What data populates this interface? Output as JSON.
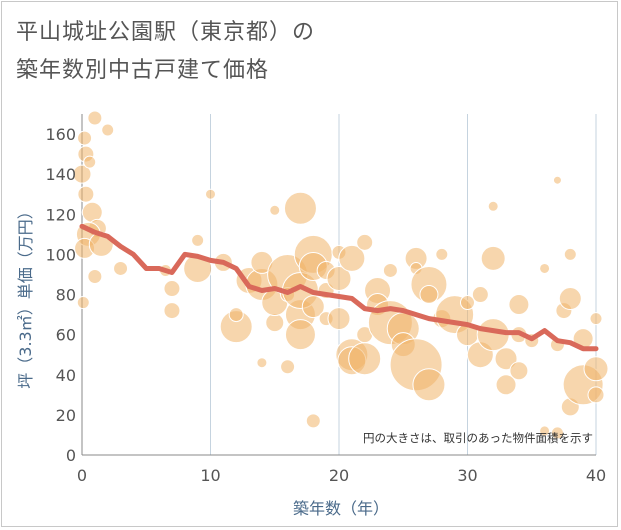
{
  "title_line1": "平山城址公園駅（東京都）の",
  "title_line2": "築年数別中古戸建て価格",
  "chart_data": {
    "type": "scatter",
    "xlabel": "築年数（年）",
    "ylabel": "坪（3.3㎡）単価（万円）",
    "xlim": [
      0,
      40
    ],
    "ylim": [
      0,
      170
    ],
    "xticks": [
      "0",
      "10",
      "20",
      "30",
      "40"
    ],
    "yticks": [
      "0",
      "20",
      "40",
      "60",
      "80",
      "100",
      "120",
      "140",
      "160"
    ],
    "xtick_values": [
      0,
      10,
      20,
      30,
      40
    ],
    "ytick_values": [
      0,
      20,
      40,
      60,
      80,
      100,
      120,
      140,
      160
    ],
    "grid": true,
    "annotation": "円の大きさは、取引のあった物件面積を示す",
    "bubble_color": "#f0b56a",
    "line_color": "#d9695a",
    "bubbles": [
      {
        "x": 0.2,
        "y": 158,
        "s": 7
      },
      {
        "x": 0.3,
        "y": 150,
        "s": 8
      },
      {
        "x": 0,
        "y": 140,
        "s": 9
      },
      {
        "x": 0.6,
        "y": 146,
        "s": 6
      },
      {
        "x": 0.3,
        "y": 130,
        "s": 8
      },
      {
        "x": 0.8,
        "y": 121,
        "s": 10
      },
      {
        "x": 1.2,
        "y": 113,
        "s": 9
      },
      {
        "x": 0.5,
        "y": 110,
        "s": 12
      },
      {
        "x": 0.2,
        "y": 103,
        "s": 10
      },
      {
        "x": 1.5,
        "y": 105,
        "s": 12
      },
      {
        "x": 1,
        "y": 89,
        "s": 7
      },
      {
        "x": 0.1,
        "y": 76,
        "s": 6
      },
      {
        "x": 1,
        "y": 168,
        "s": 7
      },
      {
        "x": 2,
        "y": 162,
        "s": 6
      },
      {
        "x": 3,
        "y": 93,
        "s": 7
      },
      {
        "x": 6.5,
        "y": 92,
        "s": 6
      },
      {
        "x": 7,
        "y": 83,
        "s": 8
      },
      {
        "x": 7,
        "y": 72,
        "s": 8
      },
      {
        "x": 9,
        "y": 93,
        "s": 14
      },
      {
        "x": 9,
        "y": 107,
        "s": 6
      },
      {
        "x": 10,
        "y": 130,
        "s": 5
      },
      {
        "x": 11,
        "y": 96,
        "s": 9
      },
      {
        "x": 12,
        "y": 64,
        "s": 16
      },
      {
        "x": 12,
        "y": 70,
        "s": 7
      },
      {
        "x": 13,
        "y": 87,
        "s": 13
      },
      {
        "x": 14,
        "y": 85,
        "s": 16
      },
      {
        "x": 14,
        "y": 96,
        "s": 11
      },
      {
        "x": 14,
        "y": 46,
        "s": 5
      },
      {
        "x": 15,
        "y": 66,
        "s": 9
      },
      {
        "x": 15,
        "y": 76,
        "s": 13
      },
      {
        "x": 15,
        "y": 122,
        "s": 5
      },
      {
        "x": 16,
        "y": 90,
        "s": 20
      },
      {
        "x": 16,
        "y": 80,
        "s": 7
      },
      {
        "x": 16,
        "y": 44,
        "s": 7
      },
      {
        "x": 17,
        "y": 70,
        "s": 15
      },
      {
        "x": 17,
        "y": 60,
        "s": 15
      },
      {
        "x": 17,
        "y": 82,
        "s": 18
      },
      {
        "x": 17,
        "y": 123,
        "s": 16
      },
      {
        "x": 18,
        "y": 100,
        "s": 19
      },
      {
        "x": 18,
        "y": 94,
        "s": 14
      },
      {
        "x": 18,
        "y": 74,
        "s": 11
      },
      {
        "x": 18,
        "y": 17,
        "s": 7
      },
      {
        "x": 19,
        "y": 92,
        "s": 9
      },
      {
        "x": 19,
        "y": 82,
        "s": 8
      },
      {
        "x": 19,
        "y": 68,
        "s": 7
      },
      {
        "x": 20,
        "y": 88,
        "s": 12
      },
      {
        "x": 20,
        "y": 68,
        "s": 11
      },
      {
        "x": 20,
        "y": 101,
        "s": 7
      },
      {
        "x": 21,
        "y": 98,
        "s": 13
      },
      {
        "x": 21,
        "y": 50,
        "s": 16
      },
      {
        "x": 21,
        "y": 47,
        "s": 14
      },
      {
        "x": 22,
        "y": 106,
        "s": 8
      },
      {
        "x": 22,
        "y": 60,
        "s": 8
      },
      {
        "x": 22,
        "y": 48,
        "s": 16
      },
      {
        "x": 23,
        "y": 82,
        "s": 13
      },
      {
        "x": 23,
        "y": 75,
        "s": 11
      },
      {
        "x": 24,
        "y": 92,
        "s": 7
      },
      {
        "x": 24,
        "y": 66,
        "s": 22
      },
      {
        "x": 25,
        "y": 63,
        "s": 16
      },
      {
        "x": 25,
        "y": 55,
        "s": 12
      },
      {
        "x": 26,
        "y": 98,
        "s": 11
      },
      {
        "x": 26,
        "y": 93,
        "s": 6
      },
      {
        "x": 26,
        "y": 45,
        "s": 26
      },
      {
        "x": 27,
        "y": 85,
        "s": 18
      },
      {
        "x": 27,
        "y": 80,
        "s": 9
      },
      {
        "x": 27,
        "y": 35,
        "s": 16
      },
      {
        "x": 28,
        "y": 100,
        "s": 6
      },
      {
        "x": 28,
        "y": 68,
        "s": 9
      },
      {
        "x": 29,
        "y": 70,
        "s": 19
      },
      {
        "x": 30,
        "y": 76,
        "s": 7
      },
      {
        "x": 30,
        "y": 60,
        "s": 11
      },
      {
        "x": 31,
        "y": 80,
        "s": 8
      },
      {
        "x": 31,
        "y": 50,
        "s": 13
      },
      {
        "x": 32,
        "y": 98,
        "s": 12
      },
      {
        "x": 32,
        "y": 124,
        "s": 5
      },
      {
        "x": 32,
        "y": 60,
        "s": 16
      },
      {
        "x": 33,
        "y": 48,
        "s": 11
      },
      {
        "x": 33,
        "y": 35,
        "s": 10
      },
      {
        "x": 34,
        "y": 75,
        "s": 10
      },
      {
        "x": 34,
        "y": 60,
        "s": 8
      },
      {
        "x": 34,
        "y": 42,
        "s": 9
      },
      {
        "x": 35,
        "y": 57,
        "s": 7
      },
      {
        "x": 36,
        "y": 93,
        "s": 5
      },
      {
        "x": 36,
        "y": 12,
        "s": 5
      },
      {
        "x": 37,
        "y": 137,
        "s": 4
      },
      {
        "x": 37,
        "y": 55,
        "s": 7
      },
      {
        "x": 37.5,
        "y": 72,
        "s": 8
      },
      {
        "x": 38,
        "y": 78,
        "s": 11
      },
      {
        "x": 38,
        "y": 100,
        "s": 6
      },
      {
        "x": 38,
        "y": 24,
        "s": 9
      },
      {
        "x": 39,
        "y": 58,
        "s": 10
      },
      {
        "x": 39,
        "y": 35,
        "s": 20
      },
      {
        "x": 40,
        "y": 43,
        "s": 12
      },
      {
        "x": 40,
        "y": 30,
        "s": 8
      },
      {
        "x": 40,
        "y": 68,
        "s": 6
      },
      {
        "x": 37,
        "y": 11,
        "s": 6
      }
    ],
    "trend": [
      {
        "x": 0,
        "y": 114
      },
      {
        "x": 1,
        "y": 111
      },
      {
        "x": 2,
        "y": 109
      },
      {
        "x": 3,
        "y": 104
      },
      {
        "x": 4,
        "y": 100
      },
      {
        "x": 5,
        "y": 93
      },
      {
        "x": 6,
        "y": 93
      },
      {
        "x": 7,
        "y": 91
      },
      {
        "x": 8,
        "y": 100
      },
      {
        "x": 9,
        "y": 99
      },
      {
        "x": 10,
        "y": 97
      },
      {
        "x": 11,
        "y": 96
      },
      {
        "x": 12,
        "y": 93
      },
      {
        "x": 13,
        "y": 84
      },
      {
        "x": 14,
        "y": 82
      },
      {
        "x": 15,
        "y": 83
      },
      {
        "x": 16,
        "y": 81
      },
      {
        "x": 17,
        "y": 84
      },
      {
        "x": 18,
        "y": 81
      },
      {
        "x": 19,
        "y": 80
      },
      {
        "x": 20,
        "y": 79
      },
      {
        "x": 21,
        "y": 78
      },
      {
        "x": 22,
        "y": 73
      },
      {
        "x": 23,
        "y": 72
      },
      {
        "x": 24,
        "y": 73
      },
      {
        "x": 25,
        "y": 72
      },
      {
        "x": 26,
        "y": 70
      },
      {
        "x": 27,
        "y": 68
      },
      {
        "x": 28,
        "y": 67
      },
      {
        "x": 29,
        "y": 66
      },
      {
        "x": 30,
        "y": 65
      },
      {
        "x": 31,
        "y": 63
      },
      {
        "x": 32,
        "y": 62
      },
      {
        "x": 33,
        "y": 61
      },
      {
        "x": 34,
        "y": 61
      },
      {
        "x": 35,
        "y": 58
      },
      {
        "x": 36,
        "y": 62
      },
      {
        "x": 37,
        "y": 57
      },
      {
        "x": 38,
        "y": 56
      },
      {
        "x": 39,
        "y": 53
      },
      {
        "x": 40,
        "y": 53
      }
    ]
  }
}
